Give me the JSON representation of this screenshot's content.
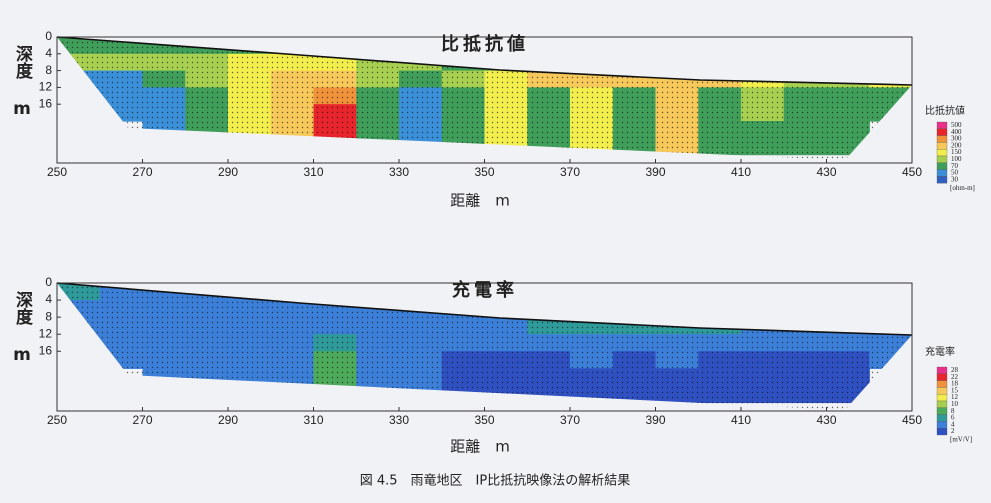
{
  "chart_data": [
    {
      "type": "heatmap",
      "title": "比抵抗値",
      "xlabel": "距離　m",
      "ylabel": "深度 m",
      "xlim": [
        250,
        450
      ],
      "xticks": [
        250,
        270,
        290,
        310,
        330,
        350,
        370,
        390,
        410,
        430,
        450
      ],
      "ylim": [
        0,
        30
      ],
      "yticks": [
        0,
        4,
        8,
        12,
        16
      ],
      "x": [
        255,
        265,
        275,
        285,
        295,
        305,
        315,
        325,
        335,
        345,
        355,
        365,
        375,
        385,
        395,
        405,
        415,
        425,
        435,
        445
      ],
      "depth": [
        2,
        6,
        10,
        14,
        18,
        22,
        26
      ],
      "values": [
        [
          70,
          70,
          70,
          70,
          70,
          70,
          70,
          70,
          70,
          70,
          70,
          100,
          100,
          100,
          150,
          150,
          150,
          150,
          150,
          150
        ],
        [
          100,
          100,
          100,
          100,
          150,
          150,
          150,
          100,
          100,
          70,
          70,
          100,
          150,
          150,
          150,
          150,
          150,
          150,
          150,
          150
        ],
        [
          50,
          50,
          70,
          100,
          150,
          200,
          200,
          100,
          70,
          100,
          150,
          200,
          200,
          200,
          200,
          200,
          150,
          100,
          100,
          150
        ],
        [
          50,
          50,
          50,
          70,
          150,
          200,
          300,
          70,
          50,
          70,
          150,
          70,
          150,
          70,
          200,
          70,
          100,
          70,
          70,
          70
        ],
        [
          null,
          50,
          50,
          70,
          150,
          200,
          400,
          70,
          50,
          70,
          150,
          70,
          150,
          70,
          200,
          70,
          100,
          70,
          70,
          70
        ],
        [
          null,
          null,
          50,
          70,
          150,
          200,
          400,
          70,
          50,
          70,
          150,
          70,
          150,
          70,
          200,
          70,
          70,
          70,
          70,
          null
        ],
        [
          null,
          null,
          null,
          null,
          null,
          null,
          null,
          70,
          50,
          70,
          150,
          70,
          150,
          70,
          200,
          70,
          70,
          70,
          70,
          null
        ]
      ],
      "colorbar": {
        "title": "比抵抗値",
        "unit": "[ohm-m]",
        "levels": [
          500,
          400,
          300,
          200,
          150,
          100,
          70,
          50,
          30
        ],
        "colors": [
          "#e8308a",
          "#e8242c",
          "#f0923a",
          "#f7c85a",
          "#f2ee4c",
          "#a8d050",
          "#3f9e5a",
          "#3a8fd8",
          "#3060c0"
        ]
      }
    },
    {
      "type": "heatmap",
      "title": "充電率",
      "xlabel": "距離　m",
      "ylabel": "深度 m",
      "xlim": [
        250,
        450
      ],
      "xticks": [
        250,
        270,
        290,
        310,
        330,
        350,
        370,
        390,
        410,
        430,
        450
      ],
      "ylim": [
        0,
        30
      ],
      "yticks": [
        0,
        4,
        8,
        12,
        16
      ],
      "x": [
        255,
        265,
        275,
        285,
        295,
        305,
        315,
        325,
        335,
        345,
        355,
        365,
        375,
        385,
        395,
        405,
        415,
        425,
        435,
        445
      ],
      "depth": [
        2,
        6,
        10,
        14,
        18,
        22,
        26
      ],
      "values": [
        [
          6,
          4,
          4,
          4,
          4,
          4,
          4,
          4,
          4,
          4,
          6,
          8,
          8,
          8,
          8,
          8,
          8,
          6,
          6,
          8
        ],
        [
          4,
          4,
          4,
          4,
          4,
          4,
          4,
          4,
          4,
          4,
          6,
          8,
          8,
          8,
          8,
          8,
          6,
          6,
          6,
          6
        ],
        [
          4,
          4,
          4,
          4,
          4,
          4,
          4,
          4,
          4,
          4,
          4,
          6,
          6,
          6,
          6,
          6,
          4,
          4,
          4,
          4
        ],
        [
          4,
          4,
          4,
          4,
          4,
          4,
          6,
          4,
          4,
          4,
          4,
          4,
          4,
          4,
          4,
          4,
          4,
          4,
          4,
          4
        ],
        [
          null,
          4,
          4,
          4,
          4,
          4,
          8,
          4,
          4,
          2,
          2,
          2,
          4,
          2,
          4,
          2,
          2,
          2,
          2,
          4
        ],
        [
          null,
          null,
          4,
          4,
          4,
          4,
          8,
          4,
          4,
          2,
          2,
          2,
          2,
          2,
          2,
          2,
          2,
          2,
          2,
          null
        ],
        [
          null,
          null,
          null,
          null,
          null,
          null,
          null,
          4,
          4,
          2,
          2,
          2,
          2,
          2,
          2,
          2,
          2,
          2,
          2,
          null
        ]
      ],
      "colorbar": {
        "title": "充電率",
        "unit": "[mV/V]",
        "levels": [
          28,
          22,
          18,
          15,
          12,
          10,
          8,
          6,
          4,
          2
        ],
        "colors": [
          "#e8308a",
          "#e8242c",
          "#f0923a",
          "#f7c85a",
          "#f2ee4c",
          "#a8d050",
          "#4caa5a",
          "#2f9a9a",
          "#3c7fd8",
          "#2f50c0"
        ]
      }
    }
  ],
  "caption": "図 4.5　雨竜地区　IP比抵抗映像法の解析結果"
}
